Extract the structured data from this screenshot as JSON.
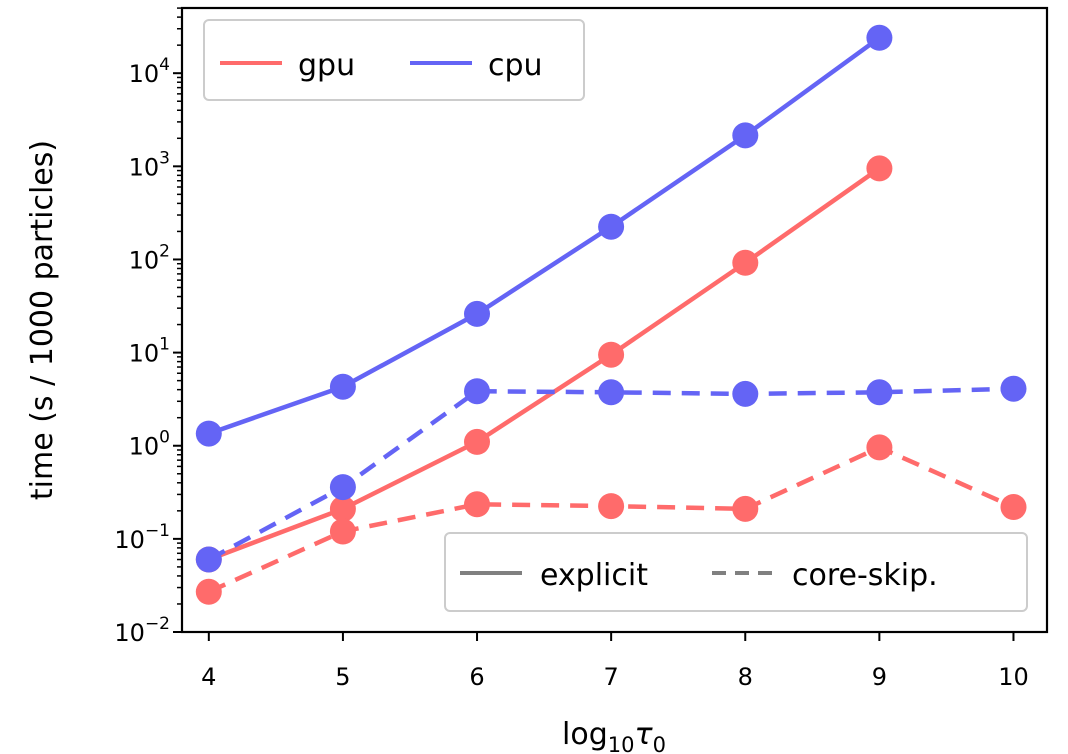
{
  "chart_data": {
    "type": "line",
    "yscale": "log",
    "xlabel": "log₁₀τ₀",
    "xlabel_parts": {
      "base": "log",
      "base_sub": "10",
      "sym": "τ",
      "sym_sub": "0"
    },
    "ylabel": "time (s / 1000 particles)",
    "xlim": [
      3.8,
      10.25
    ],
    "ylim_log10": [
      -2,
      4.7
    ],
    "x_ticks": [
      4,
      5,
      6,
      7,
      8,
      9,
      10
    ],
    "x_tick_labels": [
      "4",
      "5",
      "6",
      "7",
      "8",
      "9",
      "10"
    ],
    "y_ticks_log10": [
      -2,
      -1,
      0,
      1,
      2,
      3,
      4
    ],
    "y_tick_labels": [
      {
        "base": "10",
        "exp": "−2"
      },
      {
        "base": "10",
        "exp": "−1"
      },
      {
        "base": "10",
        "exp": "0"
      },
      {
        "base": "10",
        "exp": "1"
      },
      {
        "base": "10",
        "exp": "2"
      },
      {
        "base": "10",
        "exp": "3"
      },
      {
        "base": "10",
        "exp": "4"
      }
    ],
    "series": [
      {
        "name": "gpu explicit",
        "device": "gpu",
        "method": "explicit",
        "color": "#ff6b6b",
        "dash": false,
        "x": [
          4,
          5,
          6,
          7,
          8,
          9
        ],
        "y": [
          0.06,
          0.21,
          1.1,
          9.5,
          92,
          950
        ]
      },
      {
        "name": "cpu explicit",
        "device": "cpu",
        "method": "explicit",
        "color": "#6464f5",
        "dash": false,
        "x": [
          4,
          5,
          6,
          7,
          8,
          9
        ],
        "y": [
          1.35,
          4.3,
          26,
          225,
          2150,
          24000
        ]
      },
      {
        "name": "gpu core-skip.",
        "device": "gpu",
        "method": "core-skip.",
        "color": "#ff6b6b",
        "dash": true,
        "x": [
          4,
          5,
          6,
          7,
          8,
          9,
          10
        ],
        "y": [
          0.027,
          0.12,
          0.235,
          0.225,
          0.21,
          0.96,
          0.22
        ]
      },
      {
        "name": "cpu core-skip.",
        "device": "cpu",
        "method": "core-skip.",
        "color": "#6464f5",
        "dash": true,
        "x": [
          4,
          5,
          6,
          7,
          8,
          9,
          10
        ],
        "y": [
          0.06,
          0.36,
          3.85,
          3.75,
          3.6,
          3.75,
          4.1
        ]
      }
    ],
    "legend_devices": {
      "placement": "top-left",
      "entries": [
        {
          "label": "gpu",
          "color": "#ff6b6b"
        },
        {
          "label": "cpu",
          "color": "#6464f5"
        }
      ]
    },
    "legend_methods": {
      "placement": "bottom-right",
      "entries": [
        {
          "label": "explicit",
          "color": "#808080",
          "dash": false
        },
        {
          "label": "core-skip.",
          "color": "#808080",
          "dash": true
        }
      ]
    }
  }
}
